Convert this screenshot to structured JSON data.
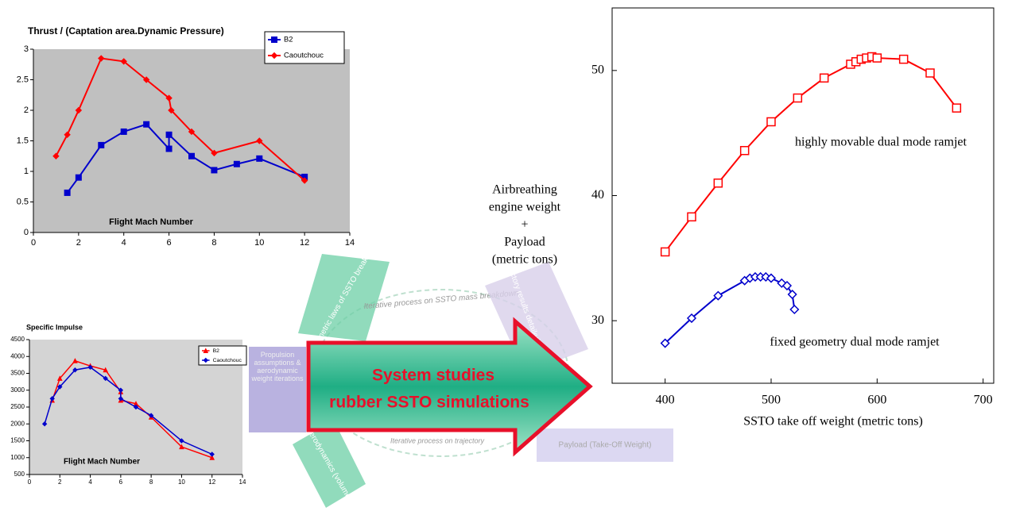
{
  "chart_data": [
    {
      "type": "line",
      "title": "Thrust / (Captation area.Dynamic Pressure)",
      "xlabel": "Flight Mach Number",
      "xlim": [
        0,
        14
      ],
      "xticks": [
        0,
        2,
        4,
        6,
        8,
        10,
        12,
        14
      ],
      "ylim": [
        0,
        3
      ],
      "yticks": [
        0,
        0.5,
        1,
        1.5,
        2,
        2.5,
        3
      ],
      "grid": false,
      "background": "#c0c0c0",
      "legend": "upper right",
      "series": [
        {
          "name": "B2",
          "color": "#0000cc",
          "marker": "square",
          "x": [
            1.5,
            2,
            3,
            4,
            5,
            6,
            6,
            7,
            8,
            9,
            10,
            12
          ],
          "values": [
            0.65,
            0.9,
            1.43,
            1.65,
            1.77,
            1.37,
            1.6,
            1.25,
            1.02,
            1.12,
            1.21,
            0.91
          ]
        },
        {
          "name": "Caoutchouc",
          "color": "#ff0000",
          "marker": "diamond",
          "x": [
            1,
            1.5,
            2,
            3,
            4,
            5,
            6,
            6.1,
            7,
            8,
            10,
            12
          ],
          "values": [
            1.25,
            1.6,
            2.0,
            2.85,
            2.8,
            2.5,
            2.2,
            2.0,
            1.65,
            1.3,
            1.5,
            0.85
          ]
        }
      ]
    },
    {
      "type": "line",
      "title": "Specific Impulse",
      "xlabel": "Flight Mach Number",
      "xlim": [
        0,
        14
      ],
      "xticks": [
        0,
        2,
        4,
        6,
        8,
        10,
        12,
        14
      ],
      "ylim": [
        500,
        4500
      ],
      "yticks": [
        500,
        1000,
        1500,
        2000,
        2500,
        3000,
        3500,
        4000,
        4500
      ],
      "grid": false,
      "background": "#d4d4d4",
      "legend": "upper right",
      "series": [
        {
          "name": "B2",
          "color": "#ff0000",
          "marker": "triangle",
          "x": [
            1.5,
            2,
            3,
            4,
            5,
            6,
            6,
            7,
            8,
            10,
            12
          ],
          "values": [
            2700,
            3350,
            3870,
            3720,
            3600,
            2950,
            2700,
            2600,
            2200,
            1320,
            1000
          ]
        },
        {
          "name": "Caoutchouc",
          "color": "#0000cc",
          "marker": "diamond",
          "x": [
            1,
            1.5,
            2,
            3,
            4,
            5,
            6,
            6,
            7,
            8,
            10,
            12
          ],
          "values": [
            2000,
            2750,
            3100,
            3600,
            3680,
            3350,
            3000,
            2750,
            2500,
            2250,
            1500,
            1100
          ]
        }
      ]
    },
    {
      "type": "line",
      "xlabel": "SSTO take off weight (metric tons)",
      "ylabel": [
        "Airbreathing",
        "engine weight",
        "+",
        "Payload",
        "(metric tons)"
      ],
      "xlim": [
        350,
        710
      ],
      "xticks": [
        400,
        500,
        600,
        700
      ],
      "ylim": [
        25,
        55
      ],
      "yticks": [
        30,
        40,
        50
      ],
      "grid": false,
      "background": "none",
      "markers_open": true,
      "annotations": [
        "highly movable dual mode ramjet",
        "fixed geometry dual mode ramjet"
      ],
      "series": [
        {
          "color": "#ff0000",
          "marker": "square",
          "x": [
            400,
            425,
            450,
            475,
            500,
            525,
            550,
            575,
            580,
            585,
            590,
            595,
            600,
            625,
            650,
            675
          ],
          "values": [
            35.5,
            38.3,
            41.0,
            43.6,
            45.9,
            47.8,
            49.4,
            50.5,
            50.7,
            50.9,
            51.0,
            51.1,
            51.0,
            50.9,
            49.8,
            47.0
          ]
        },
        {
          "color": "#0000cc",
          "marker": "diamond",
          "x": [
            400,
            425,
            450,
            475,
            480,
            485,
            490,
            495,
            500,
            510,
            515,
            520,
            522
          ],
          "values": [
            28.2,
            30.2,
            32.0,
            33.2,
            33.4,
            33.5,
            33.5,
            33.5,
            33.4,
            33.0,
            32.8,
            32.1,
            30.9
          ]
        }
      ]
    }
  ],
  "diagram": {
    "center_arrow": [
      "System studies",
      "rubber SSTO simulations"
    ],
    "parametric": "Parametric laws of SSTO breakdown",
    "mass_loop": "Iterative process on SSTO mass breakdown",
    "trajectory": "Trajectory results detailed breakdown of SSTO",
    "propulsion": "Propulsion assumptions & aerodynamic weight iterations",
    "aero": "Aerodynamics (volume)",
    "traj_loop": "Iterative process on trajectory",
    "payload": "Payload (Take-Off Weight)"
  }
}
